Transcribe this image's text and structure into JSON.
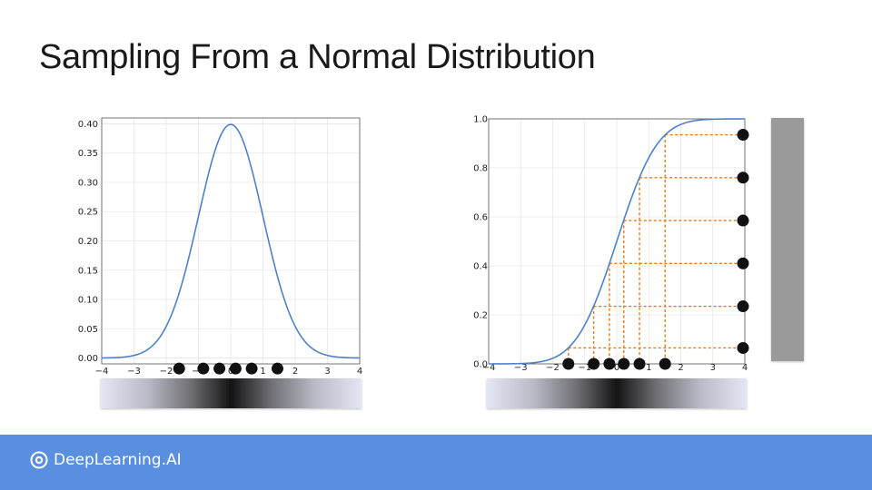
{
  "slide": {
    "title": "Sampling From a Normal Distribution",
    "brand": "DeepLearning.AI"
  },
  "colors": {
    "curve": "#4f81c7",
    "guide": "#e07b1a",
    "point": "#111111",
    "footer": "#5a8fe0",
    "bar": "#9a9a9a",
    "grid": "#e6e6e6"
  },
  "chart_data": [
    {
      "type": "line",
      "name": "pdf",
      "x_ticks": [
        -4,
        -3,
        -2,
        -1,
        0,
        1,
        2,
        3,
        4
      ],
      "x_tick_labels": [
        "−4",
        "−3",
        "−2",
        "−1",
        "0",
        "1",
        "2",
        "3",
        "4"
      ],
      "y_ticks": [
        0.0,
        0.05,
        0.1,
        0.15,
        0.2,
        0.25,
        0.3,
        0.35,
        0.4
      ],
      "y_tick_labels": [
        "0.00",
        "0.05",
        "0.10",
        "0.15",
        "0.20",
        "0.25",
        "0.30",
        "0.35",
        "0.40"
      ],
      "xlim": [
        -4,
        4
      ],
      "ylim": [
        -0.01,
        0.41
      ],
      "grid": true,
      "function": "standard normal pdf",
      "samples_x": [
        -1.6,
        -0.85,
        -0.35,
        0.15,
        0.65,
        1.45
      ],
      "samples_y": [
        -0.018,
        -0.018,
        -0.018,
        -0.018,
        -0.018,
        -0.018
      ],
      "colorbar": "density gradient below x axis"
    },
    {
      "type": "line",
      "name": "cdf",
      "x_ticks": [
        -4,
        -3,
        -2,
        -1,
        0,
        1,
        2,
        3,
        4
      ],
      "x_tick_labels": [
        "−4",
        "−3",
        "−2",
        "−1",
        "0",
        "1",
        "2",
        "3",
        "4"
      ],
      "y_ticks": [
        0.0,
        0.2,
        0.4,
        0.6,
        0.8,
        1.0
      ],
      "y_tick_labels": [
        "0.0",
        "0.2",
        "0.4",
        "0.6",
        "0.8",
        "1.0"
      ],
      "xlim": [
        -4,
        4
      ],
      "ylim": [
        0,
        1
      ],
      "grid": true,
      "function": "standard normal cdf",
      "quantile_levels": [
        0.065,
        0.235,
        0.41,
        0.585,
        0.76,
        0.935
      ],
      "samples_x": [
        -1.51,
        -0.72,
        -0.23,
        0.22,
        0.71,
        1.51
      ],
      "right_points_x": 4,
      "colorbar": "density gradient below x axis"
    }
  ]
}
